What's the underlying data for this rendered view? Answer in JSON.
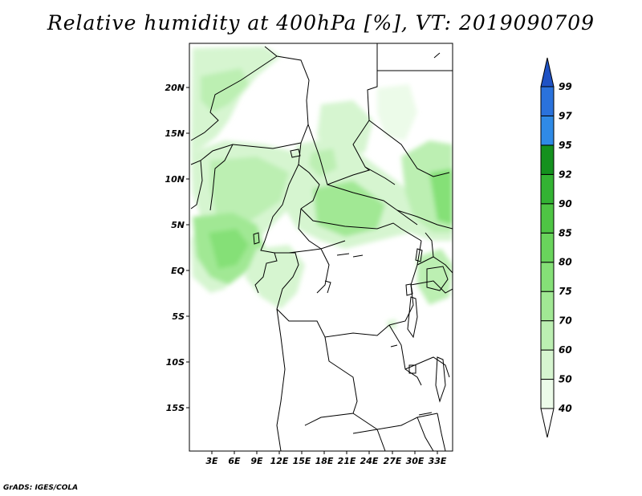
{
  "title": "Relative humidity at 400hPa [%], VT: 2019090709",
  "credit": "GrADS: IGES/COLA",
  "lat_labels": [
    "20N",
    "15N",
    "10N",
    "5N",
    "EQ",
    "5S",
    "10S",
    "15S"
  ],
  "lon_labels": [
    "3E",
    "6E",
    "9E",
    "12E",
    "15E",
    "18E",
    "21E",
    "24E",
    "27E",
    "30E",
    "33E"
  ],
  "colorbar": {
    "labels": [
      "40",
      "50",
      "60",
      "70",
      "75",
      "80",
      "85",
      "90",
      "92",
      "95",
      "97",
      "99"
    ],
    "colors": [
      "#ffffff",
      "#ecfbe9",
      "#d6f5d0",
      "#bcefb2",
      "#a1e894",
      "#85e077",
      "#69d45c",
      "#4ec544",
      "#33b333",
      "#14911e",
      "#2f8ae6",
      "#2a72dc",
      "#1f52c4"
    ]
  },
  "map": {
    "lon_range": [
      0,
      35
    ],
    "lat_range": [
      -20,
      25
    ],
    "field": "relative humidity 400hPa"
  }
}
